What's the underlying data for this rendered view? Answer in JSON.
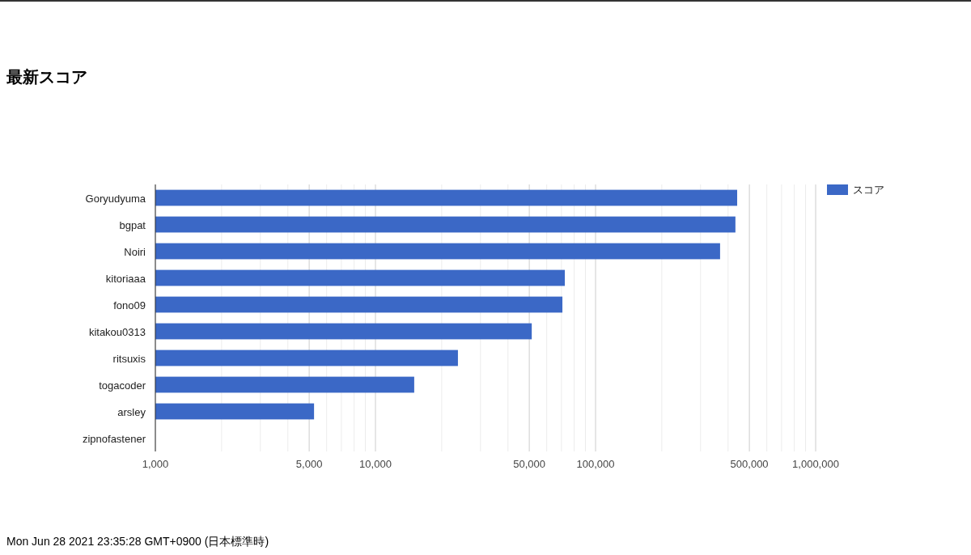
{
  "chart_data": {
    "type": "bar",
    "orientation": "horizontal",
    "title": "最新スコア",
    "annotations": [
      "Mon Jun 28 2021 23:35:28 GMT+0900 (日本標準時)"
    ],
    "categories": [
      "Goryudyuma",
      "bgpat",
      "Noiri",
      "kitoriaaa",
      "fono09",
      "kitakou0313",
      "ritsuxis",
      "togacoder",
      "arsley",
      "zipnofastener"
    ],
    "series": [
      {
        "name": "スコア",
        "color": "#3b68c6",
        "values": [
          440000,
          432000,
          368000,
          72500,
          70700,
          51300,
          23700,
          15000,
          5260,
          null
        ]
      }
    ],
    "log": "x",
    "xlim": [
      1000,
      1000000
    ],
    "xticks": [
      {
        "value": 1000,
        "label": "1,000"
      },
      {
        "value": 2000,
        "label": null
      },
      {
        "value": 3000,
        "label": null
      },
      {
        "value": 4000,
        "label": null
      },
      {
        "value": 5000,
        "label": "5,000"
      },
      {
        "value": 6000,
        "label": null
      },
      {
        "value": 7000,
        "label": null
      },
      {
        "value": 8000,
        "label": null
      },
      {
        "value": 9000,
        "label": null
      },
      {
        "value": 10000,
        "label": "10,000"
      },
      {
        "value": 20000,
        "label": null
      },
      {
        "value": 30000,
        "label": null
      },
      {
        "value": 40000,
        "label": null
      },
      {
        "value": 50000,
        "label": "50,000"
      },
      {
        "value": 60000,
        "label": null
      },
      {
        "value": 70000,
        "label": null
      },
      {
        "value": 80000,
        "label": null
      },
      {
        "value": 90000,
        "label": null
      },
      {
        "value": 100000,
        "label": "100,000"
      },
      {
        "value": 200000,
        "label": null
      },
      {
        "value": 300000,
        "label": null
      },
      {
        "value": 400000,
        "label": null
      },
      {
        "value": 500000,
        "label": "500,000"
      },
      {
        "value": 600000,
        "label": null
      },
      {
        "value": 700000,
        "label": null
      },
      {
        "value": 800000,
        "label": null
      },
      {
        "value": 900000,
        "label": null
      },
      {
        "value": 1000000,
        "label": "1,000,000"
      }
    ],
    "grid": "x",
    "legend": "top right"
  }
}
